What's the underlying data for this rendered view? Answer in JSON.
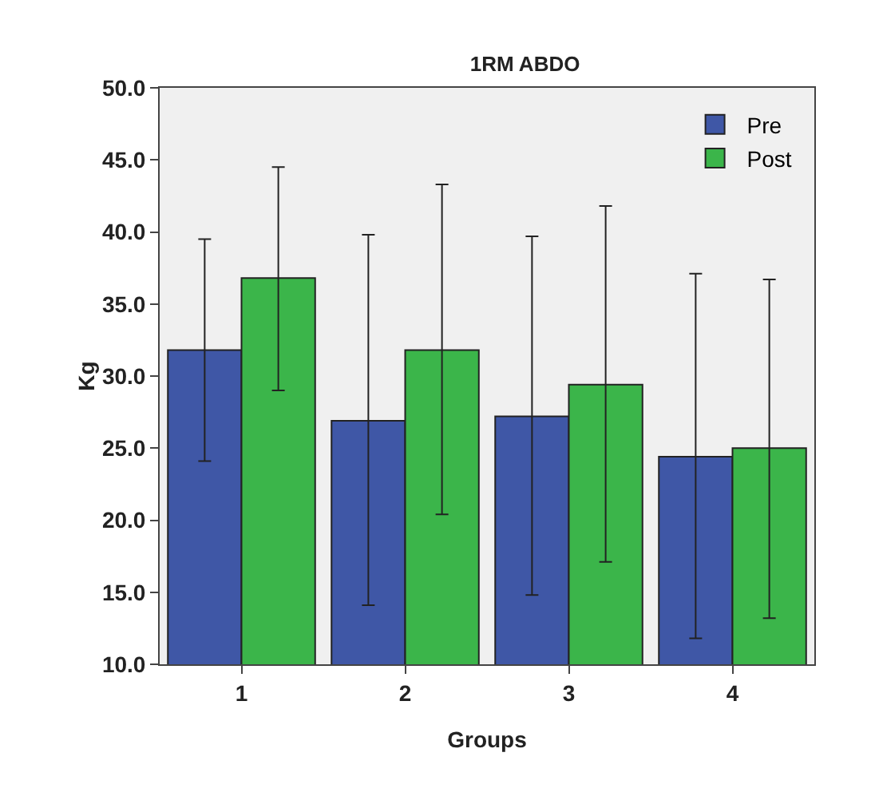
{
  "chart_data": {
    "type": "bar",
    "title": "1RM ABDO",
    "xlabel": "Groups",
    "ylabel": "Kg",
    "categories": [
      "1",
      "2",
      "3",
      "4"
    ],
    "series": [
      {
        "name": "Pre",
        "color": "#3f57a6",
        "values": [
          31.8,
          26.9,
          27.2,
          24.4
        ],
        "errors": [
          [
            24.1,
            39.5
          ],
          [
            14.1,
            39.8
          ],
          [
            14.8,
            39.7
          ],
          [
            11.8,
            37.1
          ]
        ]
      },
      {
        "name": "Post",
        "color": "#3bb54a",
        "values": [
          36.8,
          31.8,
          29.4,
          25.0
        ],
        "errors": [
          [
            29.0,
            44.5
          ],
          [
            20.4,
            43.3
          ],
          [
            17.1,
            41.8
          ],
          [
            13.2,
            36.7
          ]
        ]
      }
    ],
    "ylim": [
      10,
      50
    ],
    "yticks": [
      {
        "value": 10,
        "label": "10.0"
      },
      {
        "value": 15,
        "label": "15.0"
      },
      {
        "value": 20,
        "label": "20.0"
      },
      {
        "value": 25,
        "label": "25.0"
      },
      {
        "value": 30,
        "label": "30.0"
      },
      {
        "value": 35,
        "label": "35.0"
      },
      {
        "value": 40,
        "label": "40.0"
      },
      {
        "value": 45,
        "label": "45.0"
      },
      {
        "value": 50,
        "label": "50.0"
      }
    ],
    "grid": false,
    "legend": "top right"
  }
}
